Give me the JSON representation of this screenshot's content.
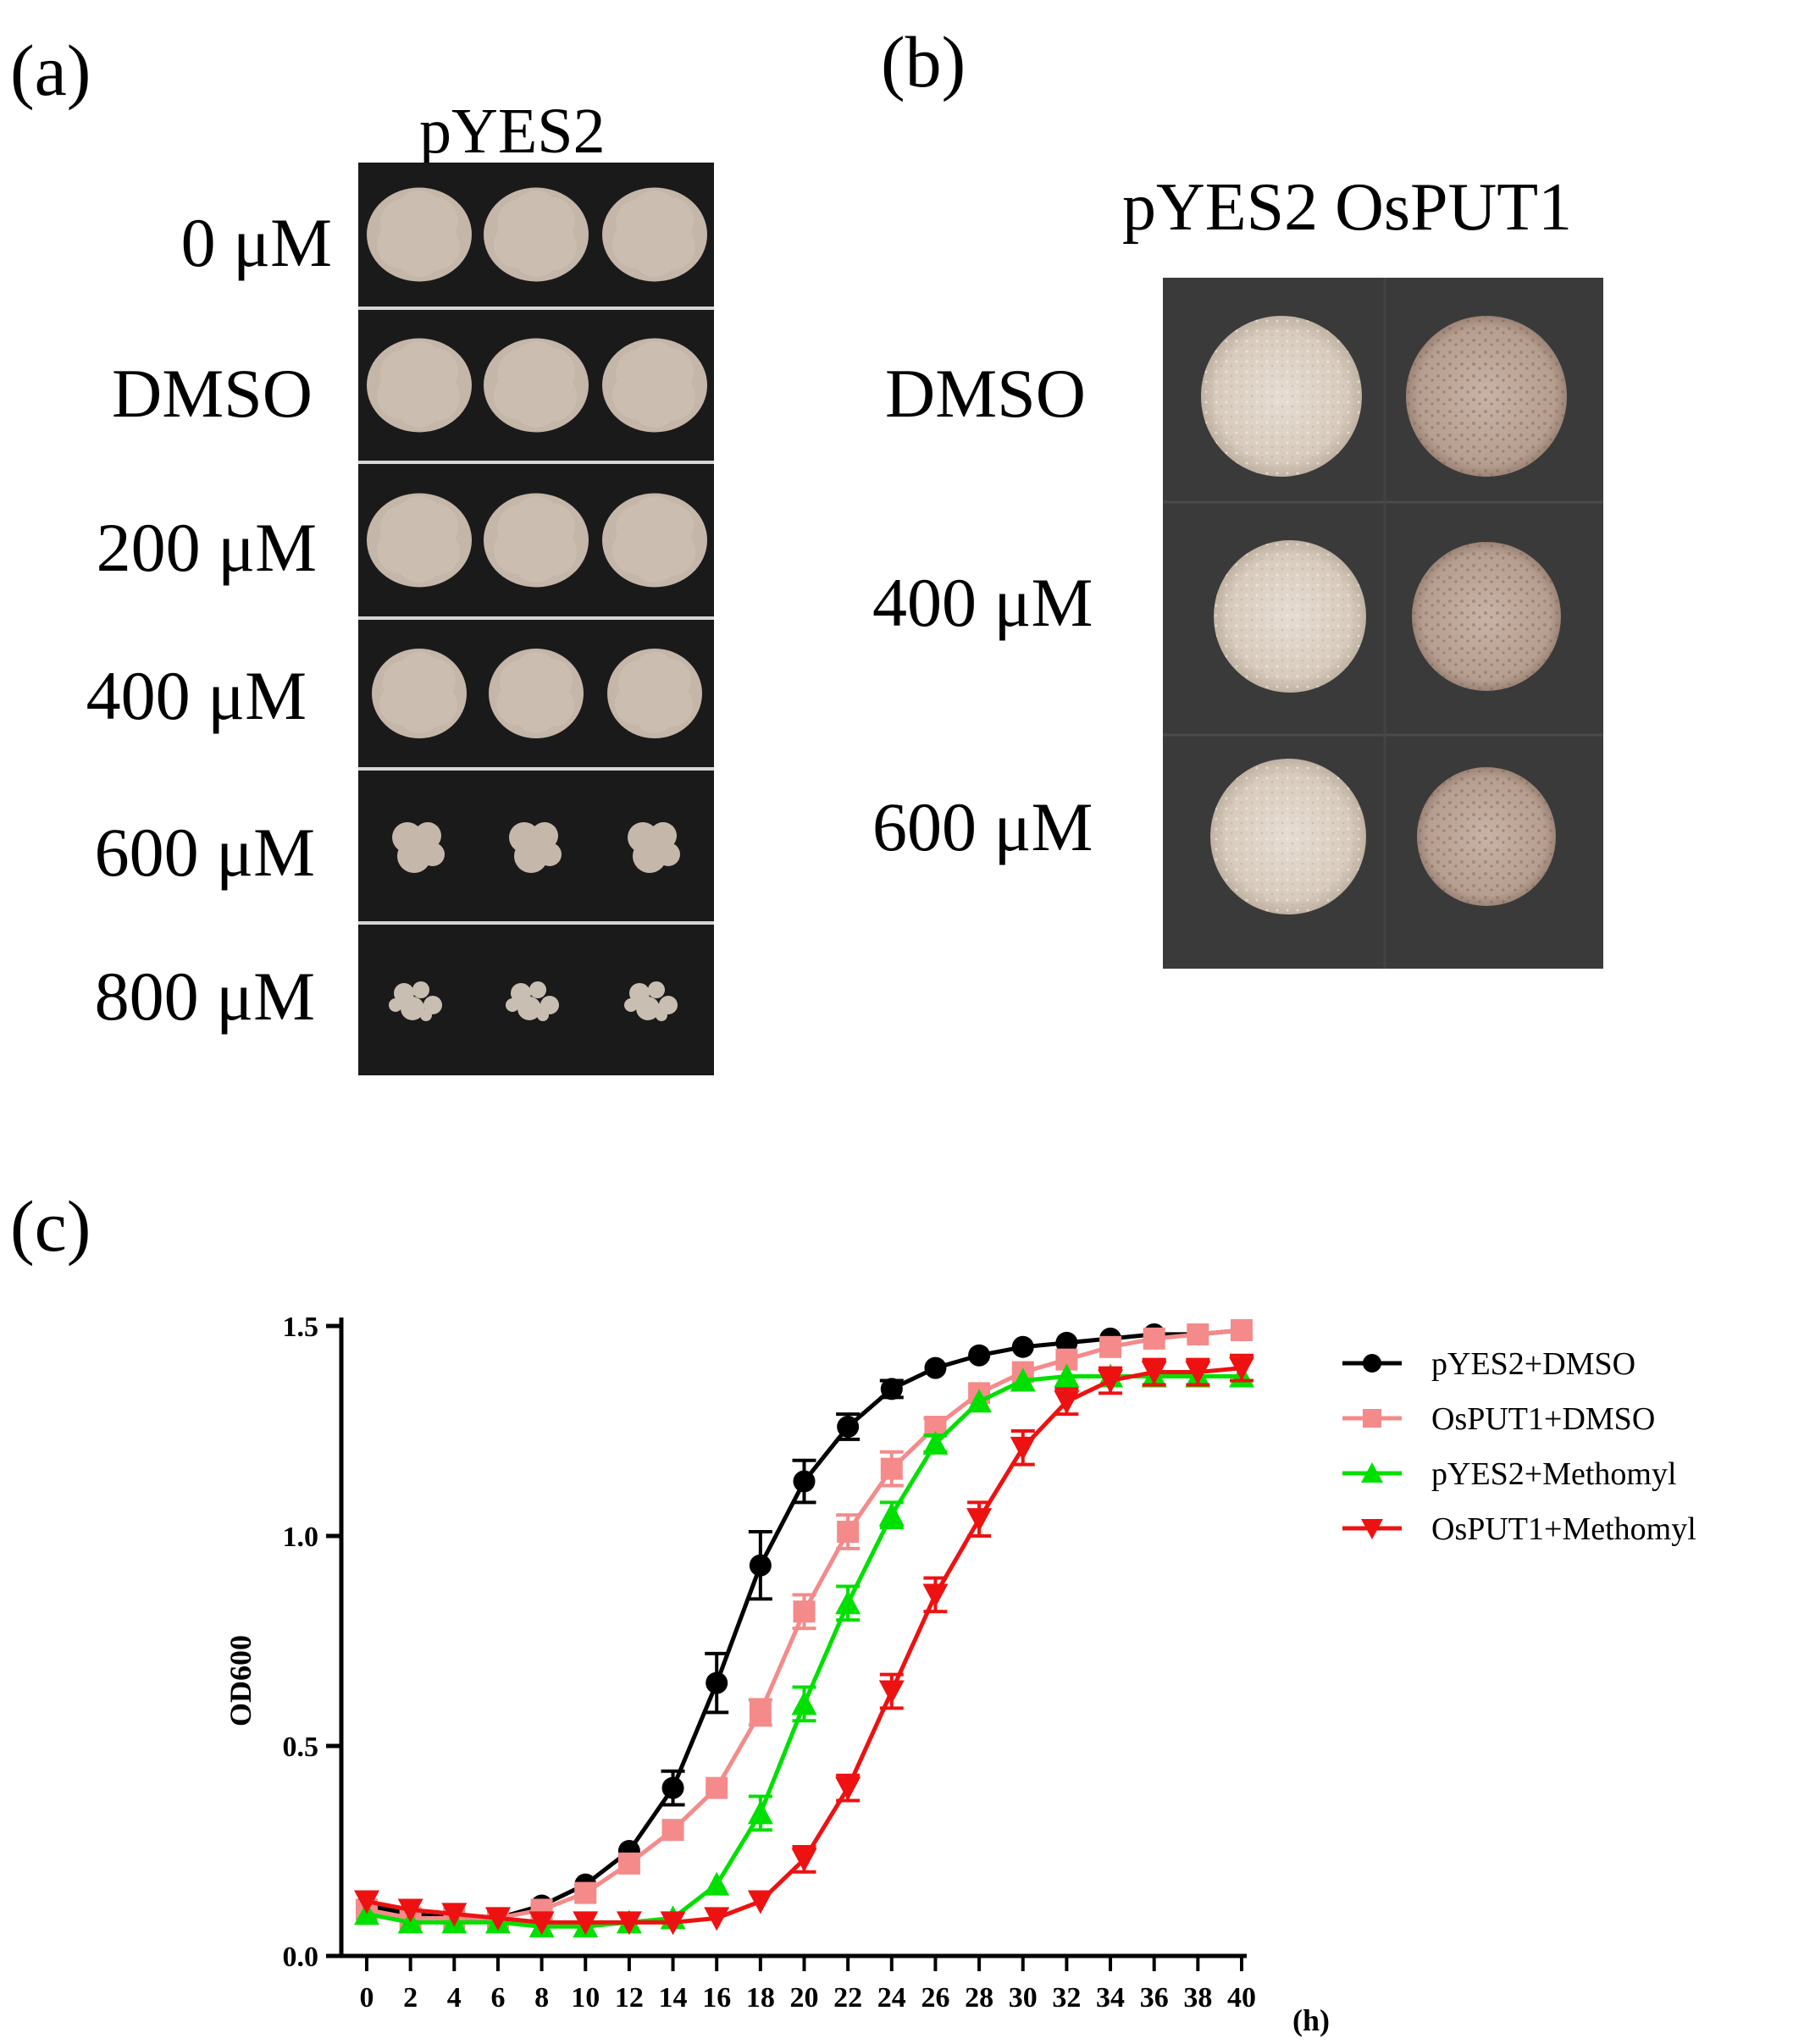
{
  "panel_a": {
    "letter": "(a)",
    "title": "pYES2",
    "rows": [
      {
        "label": "0 μM",
        "colony": "large"
      },
      {
        "label": "DMSO",
        "colony": "large"
      },
      {
        "label": "200 μM",
        "colony": "large"
      },
      {
        "label": "400 μM",
        "colony": "medium"
      },
      {
        "label": "600 μM",
        "colony": "small"
      },
      {
        "label": "800 μM",
        "colony": "tiny"
      }
    ]
  },
  "panel_b": {
    "letter": "(b)",
    "title": "pYES2 OsPUT1",
    "rows": [
      {
        "label": "DMSO"
      },
      {
        "label": "400 μM"
      },
      {
        "label": "600 μM"
      }
    ]
  },
  "panel_c": {
    "letter": "(c)"
  },
  "chart_data": {
    "type": "line",
    "xlabel": "(h)",
    "ylabel": "OD600",
    "x": [
      0,
      2,
      4,
      6,
      8,
      10,
      12,
      14,
      16,
      18,
      20,
      22,
      24,
      26,
      28,
      30,
      32,
      34,
      36,
      38,
      40
    ],
    "xlim": [
      0,
      40
    ],
    "ylim": [
      0.0,
      1.5
    ],
    "yticks": [
      "0.0",
      "0.5",
      "1.0",
      "1.5"
    ],
    "legend_position": "right",
    "series": [
      {
        "name": "pYES2+DMSO",
        "color": "#000000",
        "marker": "circle",
        "values": [
          0.12,
          0.1,
          0.09,
          0.09,
          0.12,
          0.17,
          0.25,
          0.4,
          0.65,
          0.93,
          1.13,
          1.26,
          1.35,
          1.4,
          1.43,
          1.45,
          1.46,
          1.47,
          1.48,
          1.48,
          1.49
        ],
        "errors": [
          0.01,
          0.01,
          0.01,
          0.01,
          0.01,
          0.01,
          0.01,
          0.04,
          0.07,
          0.08,
          0.05,
          0.03,
          0.02,
          0.01,
          0.01,
          0.01,
          0.01,
          0.01,
          0.01,
          0.01,
          0.01
        ]
      },
      {
        "name": "OsPUT1+DMSO",
        "color": "#f48a8a",
        "marker": "square",
        "values": [
          0.11,
          0.09,
          0.09,
          0.09,
          0.11,
          0.15,
          0.22,
          0.3,
          0.4,
          0.58,
          0.82,
          1.01,
          1.16,
          1.26,
          1.34,
          1.39,
          1.42,
          1.45,
          1.47,
          1.48,
          1.49
        ],
        "errors": [
          0.01,
          0.01,
          0.01,
          0.01,
          0.01,
          0.01,
          0.01,
          0.01,
          0.01,
          0.03,
          0.04,
          0.04,
          0.04,
          0.02,
          0.01,
          0.01,
          0.01,
          0.01,
          0.01,
          0.01,
          0.01
        ]
      },
      {
        "name": "pYES2+Methomyl",
        "color": "#00e000",
        "marker": "triangle-up",
        "values": [
          0.1,
          0.08,
          0.08,
          0.08,
          0.07,
          0.07,
          0.08,
          0.09,
          0.17,
          0.34,
          0.6,
          0.84,
          1.05,
          1.22,
          1.32,
          1.37,
          1.38,
          1.38,
          1.38,
          1.38,
          1.38
        ],
        "errors": [
          0.01,
          0.01,
          0.01,
          0.01,
          0.01,
          0.01,
          0.01,
          0.01,
          0.01,
          0.04,
          0.04,
          0.04,
          0.03,
          0.02,
          0.01,
          0.01,
          0.01,
          0.01,
          0.01,
          0.01,
          0.01
        ]
      },
      {
        "name": "OsPUT1+Methomyl",
        "color": "#ee1111",
        "marker": "triangle-down",
        "values": [
          0.13,
          0.11,
          0.1,
          0.09,
          0.08,
          0.08,
          0.08,
          0.08,
          0.09,
          0.13,
          0.23,
          0.4,
          0.63,
          0.86,
          1.04,
          1.21,
          1.32,
          1.37,
          1.39,
          1.39,
          1.4
        ],
        "errors": [
          0.01,
          0.01,
          0.01,
          0.01,
          0.01,
          0.01,
          0.01,
          0.01,
          0.01,
          0.01,
          0.03,
          0.03,
          0.04,
          0.04,
          0.04,
          0.04,
          0.03,
          0.03,
          0.03,
          0.03,
          0.03
        ]
      }
    ]
  }
}
